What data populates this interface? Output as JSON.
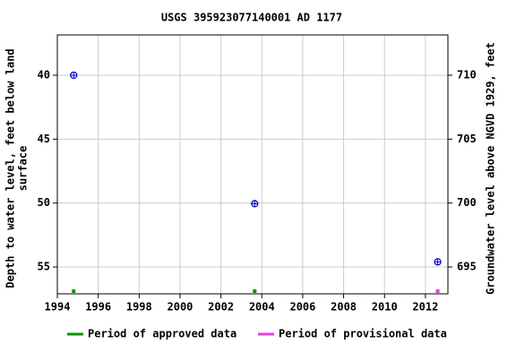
{
  "chart_data": {
    "type": "scatter",
    "title": "USGS 395923077140001 AD  1177",
    "y_label": [
      "Depth to water level, feet below land",
      "surface"
    ],
    "y2_label": "Groundwater level above NGVD 1929, feet",
    "xlim": [
      1994,
      2013.1
    ],
    "xticks": [
      1994,
      1996,
      1998,
      2000,
      2002,
      2004,
      2006,
      2008,
      2010,
      2012
    ],
    "ylim": [
      36.85,
      57.1
    ],
    "yticks": [
      40,
      45,
      50,
      55
    ],
    "y2lim": [
      713.15,
      692.9
    ],
    "y2ticks": [
      695,
      700,
      705,
      710
    ],
    "grid": true,
    "series": [
      {
        "color": "#0000cc",
        "x": [
          1994.8,
          2003.65,
          2012.6
        ],
        "values": [
          40,
          50.05,
          54.6
        ]
      }
    ],
    "period_series": [
      {
        "name": "Period of approved data",
        "color": "#009900",
        "x": [
          1994.8,
          2003.65
        ]
      },
      {
        "name": "Period of provisional data",
        "color": "#dd44dd",
        "x": [
          2012.6
        ]
      }
    ]
  }
}
